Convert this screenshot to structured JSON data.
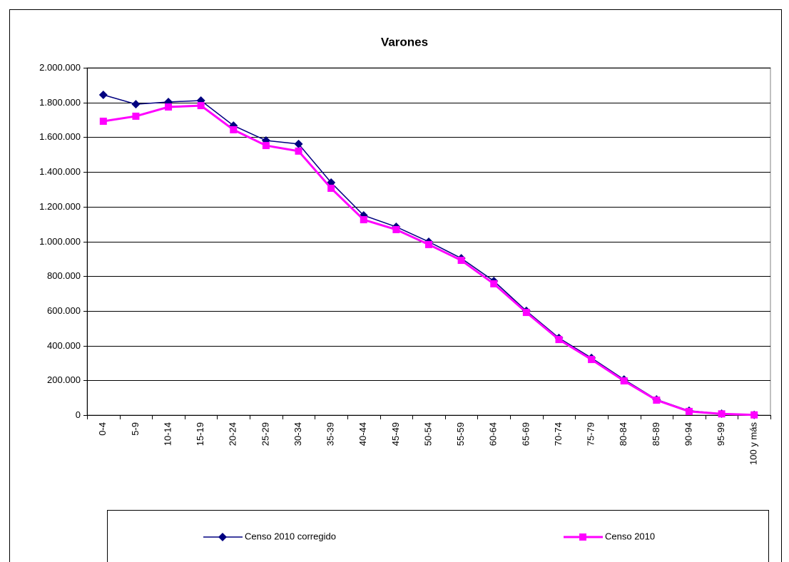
{
  "chart_data": {
    "type": "line",
    "title": "Varones",
    "categories": [
      "0-4",
      "5-9",
      "10-14",
      "15-19",
      "20-24",
      "25-29",
      "30-34",
      "35-39",
      "40-44",
      "45-49",
      "50-54",
      "55-59",
      "60-64",
      "65-69",
      "70-74",
      "75-79",
      "80-84",
      "85-89",
      "90-94",
      "95-99",
      "100 y más"
    ],
    "series": [
      {
        "name": "Censo 2010 corregido",
        "color": "#000080",
        "marker": "diamond",
        "values": [
          1844000,
          1790000,
          1803000,
          1811000,
          1667000,
          1581000,
          1561000,
          1339000,
          1150000,
          1084000,
          998000,
          903000,
          772000,
          600000,
          444000,
          329000,
          205000,
          90000,
          25000,
          8000,
          1000
        ]
      },
      {
        "name": "Censo 2010",
        "color": "#ff00ff",
        "marker": "square",
        "values": [
          1692000,
          1721000,
          1774000,
          1782000,
          1643000,
          1552000,
          1520000,
          1306000,
          1125000,
          1068000,
          982000,
          891000,
          756000,
          591000,
          435000,
          320000,
          197000,
          86000,
          21000,
          7000,
          1000
        ]
      }
    ],
    "ylim": [
      0,
      2000000
    ],
    "yticks": [
      0,
      {
        "value": 200000,
        "label": "200.000"
      },
      {
        "value": 400000,
        "label": "400.000"
      },
      {
        "value": 600000,
        "label": "600.000"
      },
      {
        "value": 800000,
        "label": "800.000"
      },
      {
        "value": 1000000,
        "label": "1.000.000"
      },
      {
        "value": 1200000,
        "label": "1.200.000"
      },
      {
        "value": 1400000,
        "label": "1.400.000"
      },
      {
        "value": 1600000,
        "label": "1.600.000"
      },
      {
        "value": 1800000,
        "label": "1.800.000"
      },
      {
        "value": 2000000,
        "label": "2.000.000"
      }
    ],
    "grid": true,
    "legend": "bottom"
  }
}
